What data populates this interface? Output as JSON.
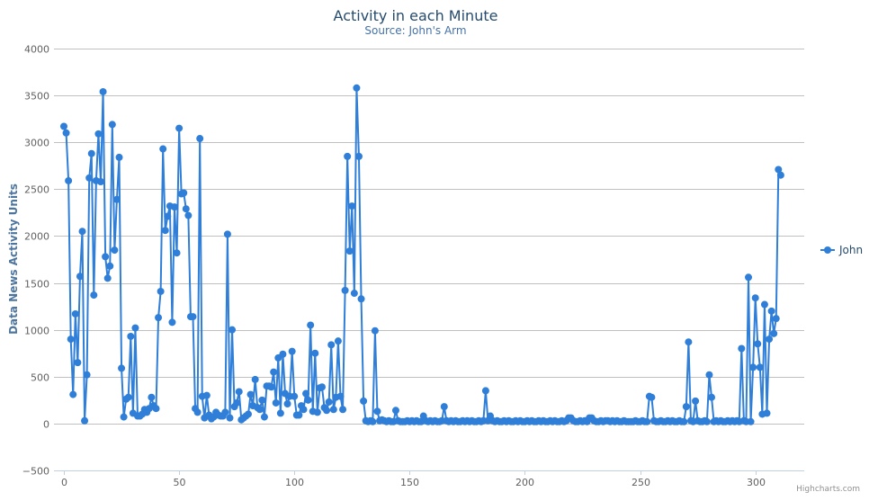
{
  "colors": {
    "series": "#2f7ed8",
    "grid": "#c0c0c0",
    "axis": "#c0d0e0"
  },
  "credits": "Highcharts.com",
  "chart_data": {
    "type": "line",
    "title": "Activity in each Minute",
    "subtitle": "Source: John's Arm",
    "xlabel": "",
    "ylabel": "Data News Activity Units",
    "xlim": [
      0,
      313
    ],
    "ylim": [
      -500,
      4000
    ],
    "x_ticks": [
      0,
      50,
      100,
      150,
      200,
      250,
      300
    ],
    "y_ticks": [
      -500,
      0,
      500,
      1000,
      1500,
      2000,
      2500,
      3000,
      3500,
      4000
    ],
    "grid": true,
    "legend_position": "right",
    "series": [
      {
        "name": "John",
        "values": [
          3170,
          3100,
          2590,
          900,
          310,
          1170,
          650,
          1570,
          2050,
          30,
          520,
          2620,
          2880,
          1370,
          2590,
          3090,
          2580,
          3540,
          1780,
          1550,
          1680,
          3190,
          1850,
          2390,
          2840,
          590,
          70,
          260,
          280,
          930,
          110,
          1020,
          80,
          80,
          100,
          150,
          120,
          160,
          280,
          190,
          160,
          1130,
          1410,
          2930,
          2060,
          2210,
          2320,
          1080,
          2310,
          1820,
          3150,
          2450,
          2460,
          2290,
          2220,
          1140,
          1140,
          160,
          120,
          3040,
          290,
          60,
          300,
          90,
          50,
          70,
          120,
          90,
          80,
          80,
          120,
          2020,
          60,
          1000,
          180,
          220,
          340,
          40,
          60,
          80,
          100,
          310,
          190,
          470,
          170,
          150,
          250,
          70,
          400,
          400,
          390,
          550,
          220,
          700,
          110,
          740,
          320,
          210,
          290,
          770,
          290,
          90,
          90,
          190,
          150,
          320,
          250,
          1050,
          130,
          750,
          120,
          380,
          390,
          170,
          140,
          230,
          840,
          150,
          280,
          880,
          290,
          150,
          1420,
          2850,
          1840,
          2320,
          1390,
          3580,
          2850,
          1330,
          240,
          30,
          20,
          30,
          20,
          990,
          130,
          30,
          40,
          30,
          20,
          30,
          20,
          20,
          140,
          30,
          20,
          20,
          20,
          30,
          20,
          30,
          20,
          30,
          20,
          20,
          80,
          30,
          20,
          30,
          20,
          30,
          20,
          20,
          30,
          180,
          30,
          20,
          30,
          20,
          30,
          20,
          20,
          30,
          20,
          30,
          20,
          30,
          20,
          20,
          30,
          20,
          30,
          350,
          30,
          80,
          30,
          20,
          30,
          20,
          20,
          30,
          20,
          30,
          20,
          20,
          30,
          20,
          30,
          20,
          20,
          30,
          20,
          30,
          20,
          20,
          30,
          20,
          30,
          20,
          20,
          30,
          20,
          30,
          20,
          20,
          30,
          20,
          30,
          60,
          60,
          30,
          20,
          20,
          30,
          20,
          30,
          20,
          60,
          60,
          30,
          20,
          20,
          30,
          20,
          30,
          30,
          20,
          30,
          20,
          30,
          20,
          20,
          30,
          20,
          20,
          20,
          20,
          30,
          20,
          20,
          30,
          20,
          20,
          290,
          280,
          30,
          20,
          20,
          30,
          20,
          20,
          30,
          20,
          30,
          20,
          20,
          30,
          20,
          20,
          180,
          870,
          30,
          20,
          240,
          30,
          20,
          20,
          30,
          20,
          520,
          280,
          20,
          30,
          20,
          30,
          20,
          20,
          30,
          20,
          30,
          20,
          30,
          20,
          800,
          30,
          20,
          1560,
          20,
          600,
          1340,
          850,
          600,
          100,
          1270,
          110,
          900,
          1200,
          960,
          1120,
          2710,
          2650
        ]
      }
    ]
  }
}
